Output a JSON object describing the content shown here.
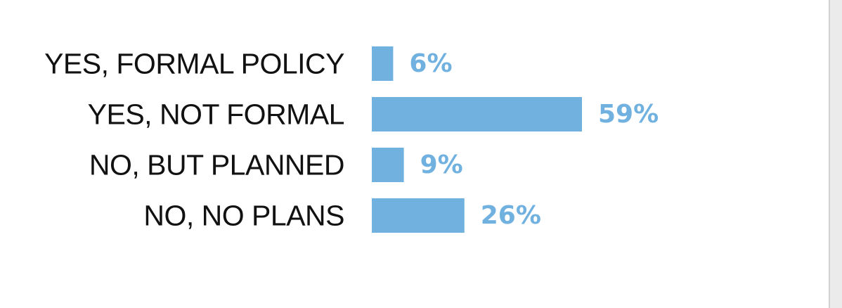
{
  "chart_data": {
    "type": "bar",
    "orientation": "horizontal",
    "categories": [
      "YES, FORMAL POLICY",
      "YES, NOT FORMAL",
      "NO, BUT PLANNED",
      "NO, NO PLANS"
    ],
    "values": [
      6,
      59,
      9,
      26
    ],
    "value_labels": [
      "6%",
      "59%",
      "9%",
      "26%"
    ],
    "unit": "%",
    "xlim": [
      0,
      59
    ],
    "title": "",
    "xlabel": "",
    "ylabel": "",
    "grid": false,
    "legend": "none",
    "colors": {
      "bar": "#70b1e0",
      "value_label": "#70b1e0",
      "category_label": "#111111"
    }
  }
}
